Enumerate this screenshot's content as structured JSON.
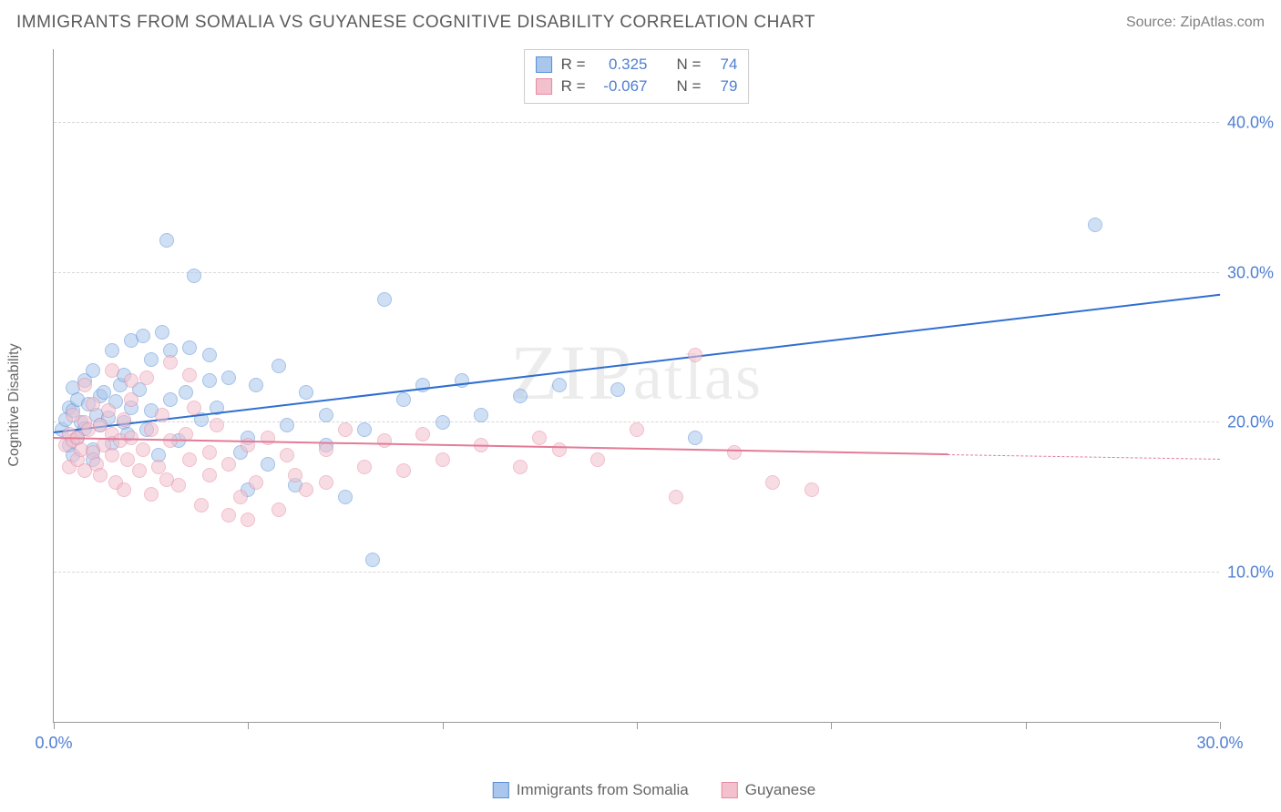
{
  "header": {
    "title": "IMMIGRANTS FROM SOMALIA VS GUYANESE COGNITIVE DISABILITY CORRELATION CHART",
    "source": "Source: ZipAtlas.com"
  },
  "chart": {
    "type": "scatter",
    "y_axis_label": "Cognitive Disability",
    "watermark": "ZIPatlas",
    "background_color": "#ffffff",
    "grid_color": "#d8d8d8",
    "axis_color": "#999999",
    "tick_label_color": "#4f7fd1",
    "tick_fontsize": 18,
    "xlim": [
      0,
      30
    ],
    "ylim": [
      0,
      45
    ],
    "x_ticks": [
      0,
      5,
      10,
      15,
      20,
      25,
      30
    ],
    "x_tick_labels": {
      "0": "0.0%",
      "30": "30.0%"
    },
    "y_gridlines": [
      10,
      20,
      30,
      40
    ],
    "y_tick_labels": {
      "10": "10.0%",
      "20": "20.0%",
      "30": "30.0%",
      "40": "40.0%"
    },
    "point_radius": 8,
    "point_opacity": 0.55,
    "series": [
      {
        "name": "Immigrants from Somalia",
        "fill_color": "#a9c7ec",
        "stroke_color": "#5a8fd6",
        "line_color": "#2f6fd0",
        "r_label": "R =",
        "r_value": "0.325",
        "n_label": "N =",
        "n_value": "74",
        "trend": {
          "x1": 0,
          "y1": 19.3,
          "x2": 30,
          "y2": 28.5
        },
        "points": [
          [
            0.2,
            19.5
          ],
          [
            0.3,
            20.2
          ],
          [
            0.4,
            21.0
          ],
          [
            0.4,
            18.5
          ],
          [
            0.5,
            20.8
          ],
          [
            0.5,
            22.3
          ],
          [
            0.6,
            19.0
          ],
          [
            0.6,
            21.5
          ],
          [
            0.7,
            20.0
          ],
          [
            0.8,
            22.8
          ],
          [
            0.8,
            19.6
          ],
          [
            0.9,
            21.2
          ],
          [
            1.0,
            23.5
          ],
          [
            1.0,
            18.2
          ],
          [
            1.1,
            20.5
          ],
          [
            1.2,
            21.8
          ],
          [
            1.2,
            19.8
          ],
          [
            1.3,
            22.0
          ],
          [
            1.4,
            20.3
          ],
          [
            1.5,
            24.8
          ],
          [
            1.5,
            18.6
          ],
          [
            1.6,
            21.4
          ],
          [
            1.7,
            22.5
          ],
          [
            1.8,
            23.2
          ],
          [
            1.8,
            20.0
          ],
          [
            1.9,
            19.2
          ],
          [
            2.0,
            25.5
          ],
          [
            2.0,
            21.0
          ],
          [
            2.2,
            22.2
          ],
          [
            2.3,
            25.8
          ],
          [
            2.4,
            19.5
          ],
          [
            2.5,
            24.2
          ],
          [
            2.5,
            20.8
          ],
          [
            2.7,
            17.8
          ],
          [
            2.8,
            26.0
          ],
          [
            2.9,
            32.2
          ],
          [
            3.0,
            21.5
          ],
          [
            3.0,
            24.8
          ],
          [
            3.2,
            18.8
          ],
          [
            3.4,
            22.0
          ],
          [
            3.5,
            25.0
          ],
          [
            3.6,
            29.8
          ],
          [
            3.8,
            20.2
          ],
          [
            4.0,
            22.8
          ],
          [
            4.0,
            24.5
          ],
          [
            4.2,
            21.0
          ],
          [
            4.5,
            23.0
          ],
          [
            4.8,
            18.0
          ],
          [
            5.0,
            15.5
          ],
          [
            5.0,
            19.0
          ],
          [
            5.2,
            22.5
          ],
          [
            5.5,
            17.2
          ],
          [
            5.8,
            23.8
          ],
          [
            6.0,
            19.8
          ],
          [
            6.2,
            15.8
          ],
          [
            6.5,
            22.0
          ],
          [
            7.0,
            18.5
          ],
          [
            7.0,
            20.5
          ],
          [
            7.5,
            15.0
          ],
          [
            8.0,
            19.5
          ],
          [
            8.2,
            10.8
          ],
          [
            8.5,
            28.2
          ],
          [
            9.0,
            21.5
          ],
          [
            9.5,
            22.5
          ],
          [
            10.0,
            20.0
          ],
          [
            10.5,
            22.8
          ],
          [
            11.0,
            20.5
          ],
          [
            12.0,
            21.8
          ],
          [
            13.0,
            22.5
          ],
          [
            14.5,
            22.2
          ],
          [
            16.5,
            19.0
          ],
          [
            26.8,
            33.2
          ],
          [
            1.0,
            17.5
          ],
          [
            0.5,
            17.8
          ]
        ]
      },
      {
        "name": "Guyanese",
        "fill_color": "#f3c1cd",
        "stroke_color": "#e68aa3",
        "line_color": "#e37b98",
        "r_label": "R =",
        "r_value": "-0.067",
        "n_label": "N =",
        "n_value": "79",
        "trend": {
          "x1": 0,
          "y1": 18.9,
          "x2": 23,
          "y2": 17.8
        },
        "trend_dash": {
          "x1": 23,
          "y1": 17.8,
          "x2": 30,
          "y2": 17.5
        },
        "points": [
          [
            0.3,
            18.5
          ],
          [
            0.4,
            19.2
          ],
          [
            0.4,
            17.0
          ],
          [
            0.5,
            18.8
          ],
          [
            0.5,
            20.5
          ],
          [
            0.6,
            17.5
          ],
          [
            0.6,
            19.0
          ],
          [
            0.7,
            18.2
          ],
          [
            0.8,
            20.0
          ],
          [
            0.8,
            16.8
          ],
          [
            0.9,
            19.5
          ],
          [
            1.0,
            18.0
          ],
          [
            1.0,
            21.2
          ],
          [
            1.1,
            17.2
          ],
          [
            1.2,
            19.8
          ],
          [
            1.2,
            16.5
          ],
          [
            1.3,
            18.5
          ],
          [
            1.4,
            20.8
          ],
          [
            1.5,
            17.8
          ],
          [
            1.5,
            19.2
          ],
          [
            1.6,
            16.0
          ],
          [
            1.7,
            18.8
          ],
          [
            1.8,
            20.2
          ],
          [
            1.8,
            15.5
          ],
          [
            1.9,
            17.5
          ],
          [
            2.0,
            19.0
          ],
          [
            2.0,
            21.5
          ],
          [
            2.2,
            16.8
          ],
          [
            2.3,
            18.2
          ],
          [
            2.4,
            23.0
          ],
          [
            2.5,
            15.2
          ],
          [
            2.5,
            19.5
          ],
          [
            2.7,
            17.0
          ],
          [
            2.8,
            20.5
          ],
          [
            2.9,
            16.2
          ],
          [
            3.0,
            18.8
          ],
          [
            3.0,
            24.0
          ],
          [
            3.2,
            15.8
          ],
          [
            3.4,
            19.2
          ],
          [
            3.5,
            17.5
          ],
          [
            3.6,
            21.0
          ],
          [
            3.8,
            14.5
          ],
          [
            4.0,
            18.0
          ],
          [
            4.0,
            16.5
          ],
          [
            4.2,
            19.8
          ],
          [
            4.5,
            13.8
          ],
          [
            4.5,
            17.2
          ],
          [
            4.8,
            15.0
          ],
          [
            5.0,
            13.5
          ],
          [
            5.0,
            18.5
          ],
          [
            5.2,
            16.0
          ],
          [
            5.5,
            19.0
          ],
          [
            5.8,
            14.2
          ],
          [
            6.0,
            17.8
          ],
          [
            6.2,
            16.5
          ],
          [
            6.5,
            15.5
          ],
          [
            7.0,
            18.2
          ],
          [
            7.0,
            16.0
          ],
          [
            7.5,
            19.5
          ],
          [
            8.0,
            17.0
          ],
          [
            8.5,
            18.8
          ],
          [
            9.0,
            16.8
          ],
          [
            9.5,
            19.2
          ],
          [
            10.0,
            17.5
          ],
          [
            11.0,
            18.5
          ],
          [
            12.0,
            17.0
          ],
          [
            12.5,
            19.0
          ],
          [
            13.0,
            18.2
          ],
          [
            14.0,
            17.5
          ],
          [
            15.0,
            19.5
          ],
          [
            16.0,
            15.0
          ],
          [
            16.5,
            24.5
          ],
          [
            17.5,
            18.0
          ],
          [
            18.5,
            16.0
          ],
          [
            19.5,
            15.5
          ],
          [
            0.8,
            22.5
          ],
          [
            1.5,
            23.5
          ],
          [
            2.0,
            22.8
          ],
          [
            3.5,
            23.2
          ]
        ]
      }
    ]
  }
}
